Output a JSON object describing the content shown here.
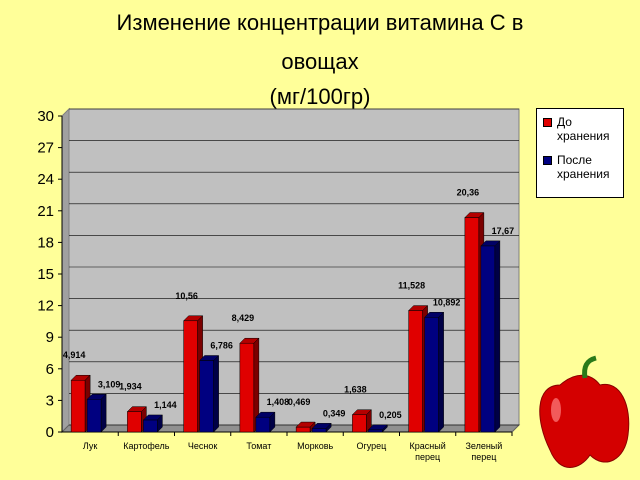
{
  "chart_data": {
    "type": "bar3d",
    "title": [
      "Изменение концентрации витамина С в",
      "овощах",
      "(мг/100гр)"
    ],
    "categories": [
      "Лук",
      "Картофель",
      "Чеснок",
      "Томат",
      "Морковь",
      "Огурец",
      "Красный перец",
      "Зеленый перец"
    ],
    "series": [
      {
        "name": "До хранения",
        "color": "#e00000",
        "values": [
          4.914,
          1.934,
          10.56,
          8.429,
          0.469,
          1.638,
          11.528,
          20.36
        ],
        "value_labels": [
          "4,914",
          "1,934",
          "10,56",
          "8,429",
          "0,469",
          "1,638",
          "11,528",
          "20,36"
        ]
      },
      {
        "name": "После хранения",
        "color": "#000080",
        "values": [
          3.109,
          1.144,
          6.786,
          1.408,
          0.349,
          0.205,
          10.892,
          17.67
        ],
        "value_labels": [
          "3,109",
          "1,144",
          "6,786",
          "1,408",
          "0,349",
          "0,205",
          "10,892",
          "17,67"
        ]
      }
    ],
    "ylim": [
      0,
      30
    ],
    "yticks": [
      0,
      3,
      6,
      9,
      12,
      15,
      18,
      21,
      24,
      27,
      30
    ],
    "grid": true
  }
}
